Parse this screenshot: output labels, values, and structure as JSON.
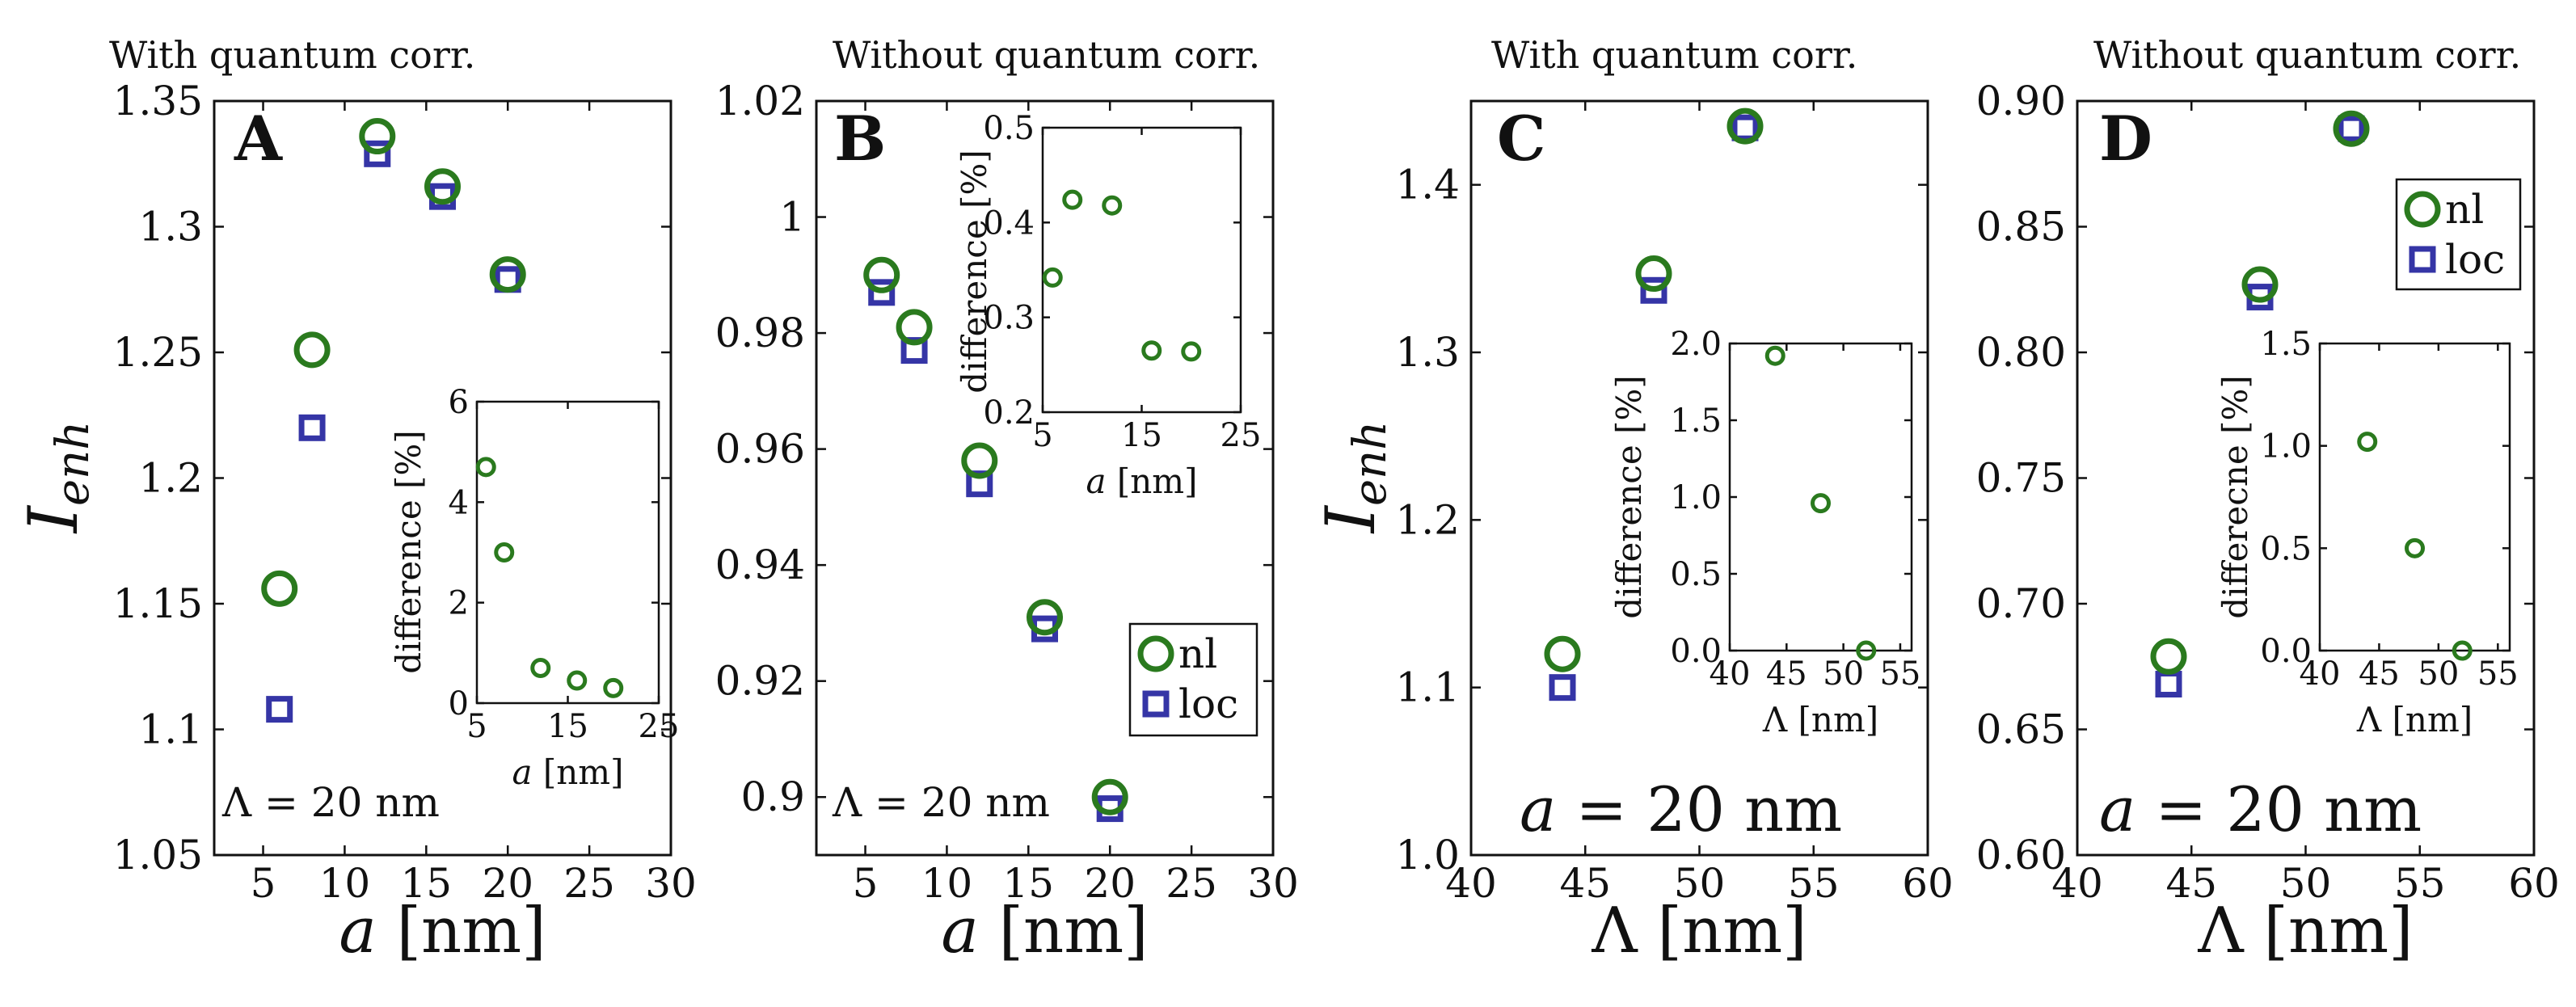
{
  "colors": {
    "nl": "#2a7a1e",
    "loc": "#3535a6"
  },
  "chart_data": [
    {
      "type": "scatter",
      "panel_label": "A",
      "title": "With quantum corr.",
      "xlabel_var": "a",
      "xlabel_unit": "[nm]",
      "ylabel_main": "I",
      "ylabel_sub": "enh",
      "annotation": "Λ = 20 nm",
      "xlim": [
        2,
        30
      ],
      "ylim": [
        1.05,
        1.35
      ],
      "xticks": [
        5,
        10,
        15,
        20,
        25,
        30
      ],
      "xtick_labels": [
        "5",
        "10",
        "15",
        "20",
        "25",
        "30"
      ],
      "yticks": [
        1.05,
        1.1,
        1.15,
        1.2,
        1.25,
        1.3,
        1.35
      ],
      "ytick_labels": [
        "1.05",
        "1.1",
        "1.15",
        "1.2",
        "1.25",
        "1.3",
        "1.35"
      ],
      "series": [
        {
          "name": "nl",
          "marker": "circle",
          "x": [
            6,
            8,
            12,
            16,
            20
          ],
          "y": [
            1.156,
            1.251,
            1.336,
            1.316,
            1.281
          ]
        },
        {
          "name": "loc",
          "marker": "square",
          "x": [
            6,
            8,
            12,
            16,
            20
          ],
          "y": [
            1.108,
            1.22,
            1.329,
            1.312,
            1.279
          ]
        }
      ],
      "inset": {
        "xlabel_var": "a",
        "xlabel_unit": "[nm]",
        "ylabel": "difference [%]",
        "xlim": [
          5,
          25
        ],
        "ylim": [
          0,
          6
        ],
        "xticks": [
          5,
          15,
          25
        ],
        "xtick_labels": [
          "5",
          "15",
          "25"
        ],
        "yticks": [
          0,
          2,
          4,
          6
        ],
        "ytick_labels": [
          "0",
          "2",
          "4",
          "6"
        ],
        "x": [
          6,
          8,
          12,
          16,
          20
        ],
        "y": [
          4.7,
          3.0,
          0.7,
          0.45,
          0.3
        ]
      }
    },
    {
      "type": "scatter",
      "panel_label": "B",
      "title": "Without quantum corr.",
      "xlabel_var": "a",
      "xlabel_unit": "[nm]",
      "annotation": "Λ = 20 nm",
      "xlim": [
        2,
        30
      ],
      "ylim": [
        0.89,
        1.02
      ],
      "xticks": [
        5,
        10,
        15,
        20,
        25,
        30
      ],
      "xtick_labels": [
        "5",
        "10",
        "15",
        "20",
        "25",
        "30"
      ],
      "yticks": [
        0.9,
        0.92,
        0.94,
        0.96,
        0.98,
        1.0,
        1.02
      ],
      "ytick_labels": [
        "0.9",
        "0.92",
        "0.94",
        "0.96",
        "0.98",
        "1",
        "1.02"
      ],
      "legend": {
        "position": "lower-right",
        "entries": [
          "nl",
          "loc"
        ]
      },
      "series": [
        {
          "name": "nl",
          "marker": "circle",
          "x": [
            6,
            8,
            12,
            16,
            20
          ],
          "y": [
            0.99,
            0.981,
            0.958,
            0.931,
            0.9
          ]
        },
        {
          "name": "loc",
          "marker": "square",
          "x": [
            6,
            8,
            12,
            16,
            20
          ],
          "y": [
            0.987,
            0.977,
            0.954,
            0.929,
            0.898
          ]
        }
      ],
      "inset": {
        "xlabel_var": "a",
        "xlabel_unit": "[nm]",
        "ylabel": "difference [%]",
        "xlim": [
          5,
          25
        ],
        "ylim": [
          0.2,
          0.5
        ],
        "xticks": [
          5,
          15,
          25
        ],
        "xtick_labels": [
          "5",
          "15",
          "25"
        ],
        "yticks": [
          0.2,
          0.3,
          0.4,
          0.5
        ],
        "ytick_labels": [
          "0.2",
          "0.3",
          "0.4",
          "0.5"
        ],
        "x": [
          6,
          8,
          12,
          16,
          20
        ],
        "y": [
          0.342,
          0.424,
          0.418,
          0.265,
          0.264
        ]
      }
    },
    {
      "type": "scatter",
      "panel_label": "C",
      "title": "With quantum corr.",
      "xlabel_var": "Λ",
      "xlabel_unit": "[nm]",
      "ylabel_main": "I",
      "ylabel_sub": "enh",
      "annotation_var": "a",
      "annotation_rest": "= 20 nm",
      "xlim": [
        40,
        60
      ],
      "ylim": [
        1.0,
        1.45
      ],
      "xticks": [
        40,
        45,
        50,
        55,
        60
      ],
      "xtick_labels": [
        "40",
        "45",
        "50",
        "55",
        "60"
      ],
      "yticks": [
        1.0,
        1.1,
        1.2,
        1.3,
        1.4
      ],
      "ytick_labels": [
        "1.0",
        "1.1",
        "1.2",
        "1.3",
        "1.4"
      ],
      "series": [
        {
          "name": "nl",
          "marker": "circle",
          "x": [
            44,
            48,
            52
          ],
          "y": [
            1.12,
            1.347,
            1.435
          ]
        },
        {
          "name": "loc",
          "marker": "square",
          "x": [
            44,
            48,
            52
          ],
          "y": [
            1.1,
            1.337,
            1.434
          ]
        }
      ],
      "inset": {
        "xlabel_var": "Λ",
        "xlabel_unit": "[nm]",
        "ylabel": "difference [%]",
        "xlim": [
          40,
          56
        ],
        "ylim": [
          0,
          2.0
        ],
        "xticks": [
          40,
          45,
          50,
          55
        ],
        "xtick_labels": [
          "40",
          "45",
          "50",
          "55"
        ],
        "yticks": [
          0,
          0.5,
          1.0,
          1.5,
          2.0
        ],
        "ytick_labels": [
          "0.0",
          "0.5",
          "1.0",
          "1.5",
          "2.0"
        ],
        "x": [
          44,
          48,
          52
        ],
        "y": [
          1.92,
          0.96,
          0.0
        ]
      }
    },
    {
      "type": "scatter",
      "panel_label": "D",
      "title": "Without quantum corr.",
      "xlabel_var": "Λ",
      "xlabel_unit": "[nm]",
      "annotation_var": "a",
      "annotation_rest": "= 20 nm",
      "xlim": [
        40,
        60
      ],
      "ylim": [
        0.6,
        0.9
      ],
      "xticks": [
        40,
        45,
        50,
        55,
        60
      ],
      "xtick_labels": [
        "40",
        "45",
        "50",
        "55",
        "60"
      ],
      "yticks": [
        0.6,
        0.65,
        0.7,
        0.75,
        0.8,
        0.85,
        0.9
      ],
      "ytick_labels": [
        "0.60",
        "0.65",
        "0.70",
        "0.75",
        "0.80",
        "0.85",
        "0.90"
      ],
      "legend": {
        "position": "upper-right",
        "entries": [
          "nl",
          "loc"
        ]
      },
      "series": [
        {
          "name": "nl",
          "marker": "circle",
          "x": [
            44,
            48,
            52
          ],
          "y": [
            0.679,
            0.827,
            0.889
          ]
        },
        {
          "name": "loc",
          "marker": "square",
          "x": [
            44,
            48,
            52
          ],
          "y": [
            0.668,
            0.822,
            0.889
          ]
        }
      ],
      "inset": {
        "xlabel_var": "Λ",
        "xlabel_unit": "[nm]",
        "ylabel": "differecne [%]",
        "xlim": [
          40,
          56
        ],
        "ylim": [
          0,
          1.5
        ],
        "xticks": [
          40,
          45,
          50,
          55
        ],
        "xtick_labels": [
          "40",
          "45",
          "50",
          "55"
        ],
        "yticks": [
          0,
          0.5,
          1.0,
          1.5
        ],
        "ytick_labels": [
          "0.0",
          "0.5",
          "1.0",
          "1.5"
        ],
        "x": [
          44,
          48,
          52
        ],
        "y": [
          1.02,
          0.5,
          0.0
        ]
      }
    }
  ]
}
